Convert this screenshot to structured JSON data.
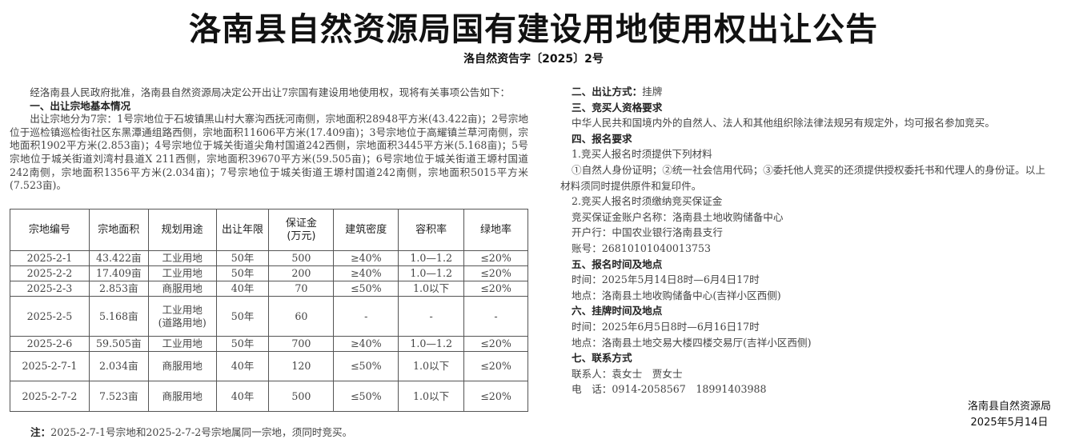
{
  "title": "洛南县自然资源局国有建设用地使用权出让公告",
  "doc_no": "洛自然资告字〔2025〕2号",
  "intro": "经洛南县人民政府批准，洛南县自然资源局决定公开出让7宗国有建设用地使用权，现将有关事项公告如下：",
  "section1": {
    "heading": "一、出让宗地基本情况",
    "text": "出让宗地分为7宗：1号宗地位于石坡镇黑山村大寨沟西抚河南侧，宗地面积28948平方米(43.422亩)；2号宗地位于巡检镇巡检街社区东黑潭通组路西侧，宗地面积11606平方米(17.409亩)；3号宗地位于高耀镇兰草河南侧，宗地面积1902平方米(2.853亩)；4号宗地位于城关街道尖角村国道242西侧，宗地面积3445平方米(5.168亩)；5号宗地位于城关街道刘湾村县道X 211西侧，宗地面积39670平方米(59.505亩)；6号宗地位于城关街道王塬村国道242南侧，宗地面积1356平方米(2.034亩)；7号宗地位于城关街道王塬村国道242南侧，宗地面积5015平方米(7.523亩)。"
  },
  "table": {
    "headers": [
      "宗地编号",
      "宗地面积",
      "规划用途",
      "出让年限",
      "保证金\n(万元)",
      "建筑密度",
      "容积率",
      "绿地率"
    ],
    "rows": [
      [
        "2025-2-1",
        "43.422亩",
        "工业用地",
        "50年",
        "500",
        "≥40%",
        "1.0—1.2",
        "≤20%"
      ],
      [
        "2025-2-2",
        "17.409亩",
        "工业用地",
        "50年",
        "200",
        "≥40%",
        "1.0—1.2",
        "≤20%"
      ],
      [
        "2025-2-3",
        "2.853亩",
        "商服用地",
        "40年",
        "70",
        "≤50%",
        "1.0以下",
        "≤20%"
      ],
      [
        "2025-2-5",
        "5.168亩",
        "工业用地\n(道路用地)",
        "50年",
        "60",
        "-",
        "-",
        "-"
      ],
      [
        "2025-2-6",
        "59.505亩",
        "工业用地",
        "50年",
        "700",
        "≥40%",
        "1.0—1.2",
        "≤20%"
      ],
      [
        "2025-2-7-1",
        "2.034亩",
        "商服用地",
        "40年",
        "120",
        "≤50%",
        "1.0以下",
        "≤20%"
      ],
      [
        "2025-2-7-2",
        "7.523亩",
        "商服用地",
        "40年",
        "500",
        "≤50%",
        "1.0以下",
        "≤20%"
      ]
    ]
  },
  "note": {
    "label": "注：",
    "text": "2025-2-7-1号宗地和2025-2-7-2号宗地属同一宗地，须同时竞买。"
  },
  "right": {
    "s2_heading": "二、出让方式：",
    "s2_value": "挂牌",
    "s3_heading": "三、竞买人资格要求",
    "s3_text": "中华人民共和国境内外的自然人、法人和其他组织除法律法规另有规定外，均可报名参加竞买。",
    "s4_heading": "四、报名要求",
    "s4_1": "1.竞买人报名时须提供下列材料",
    "s4_1_text": "①自然人身份证明；②统一社会信用代码；③委托他人竞买的还须提供授权委托书和代理人的身份证。以上",
    "s4_1_text2": "材料须同时提供原件和复印件。",
    "s4_2": "2.竞买人报名时须缴纳竞买保证金",
    "account_name": "竞买保证金账户名称：洛南县土地收购储备中心",
    "bank": "开户行：中国农业银行洛南县支行",
    "account_no": "账号：26810101040013753",
    "s5_heading": "五、报名时间及地点",
    "s5_time": "时间：2025年5月14日8时—6月4日17时",
    "s5_place": "地点：洛南县土地收购储备中心(吉祥小区西侧)",
    "s6_heading": "六、挂牌时间及地点",
    "s6_time": "时间：2025年6月5日8时—6月16日17时",
    "s6_place": "地点：洛南县土地交易大楼四楼交易厅(吉祥小区西侧)",
    "s7_heading": "七、联系方式",
    "contact": "联系人：袁女士　贾女士",
    "phone": "电　话：0914-2058567　18991403988"
  },
  "signature": {
    "org": "洛南县自然资源局",
    "date": "2025年5月14日"
  }
}
